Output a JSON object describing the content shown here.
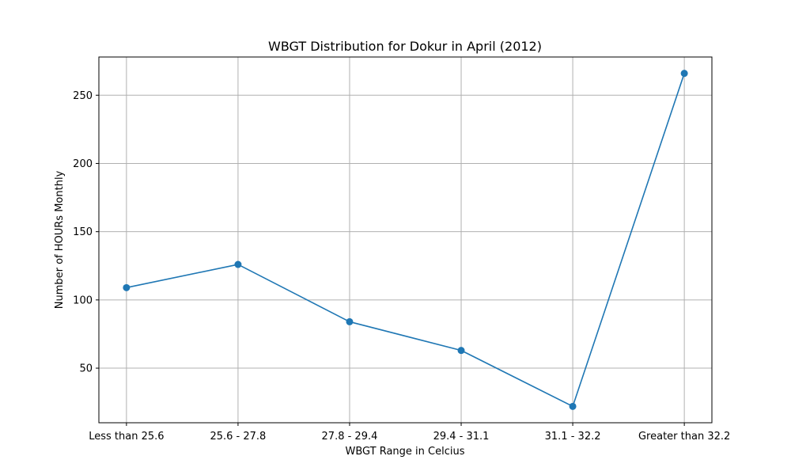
{
  "chart_data": {
    "type": "line",
    "title": "WBGT Distribution for Dokur in April (2012)",
    "xlabel": "WBGT Range in Celcius",
    "ylabel": "Number of HOURs Monthly",
    "categories": [
      "Less than 25.6",
      "25.6 - 27.8",
      "27.8 - 29.4",
      "29.4 - 31.1",
      "31.1 - 32.2",
      "Greater than 32.2"
    ],
    "values": [
      109,
      126,
      84,
      63,
      22,
      266
    ],
    "ylim": [
      10,
      278
    ],
    "yticks": [
      50,
      100,
      150,
      200,
      250
    ],
    "grid": true,
    "line_color": "#1f77b4",
    "marker": "circle"
  }
}
